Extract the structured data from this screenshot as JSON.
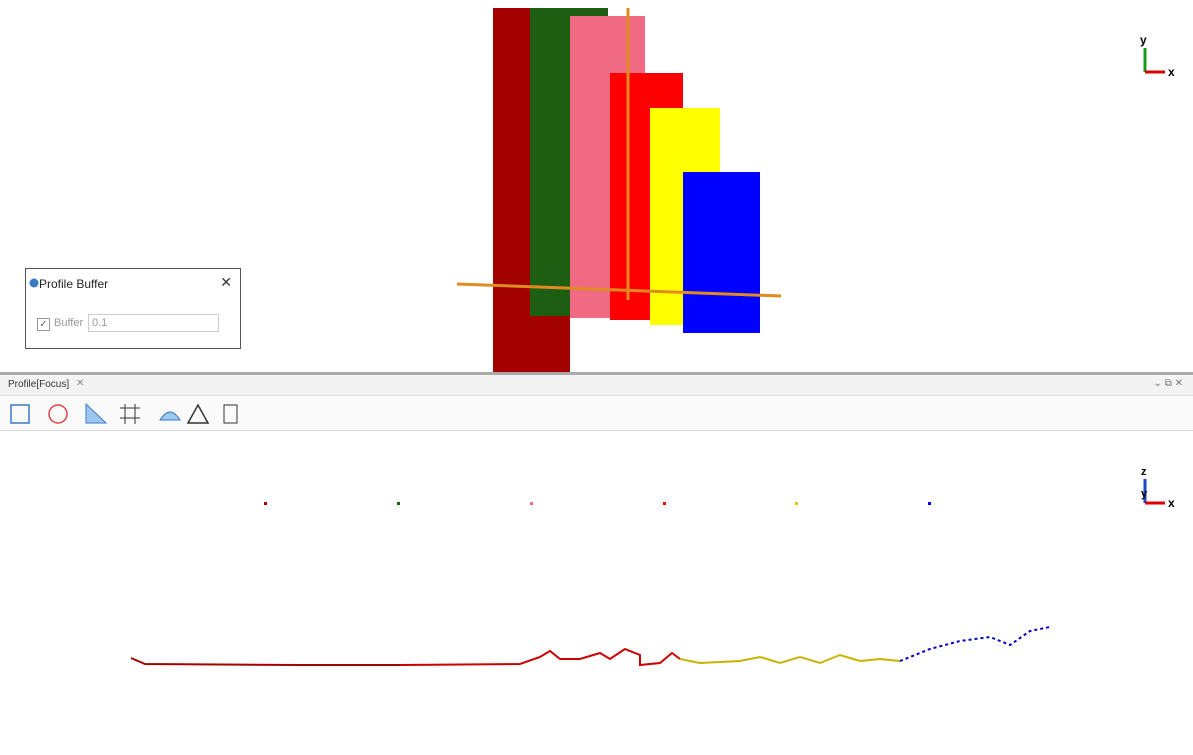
{
  "top_view": {
    "gizmo": {
      "up": "y",
      "right": "x"
    }
  },
  "dialog": {
    "title": "Profile Buffer",
    "buffer_label": "Buffer",
    "buffer_value": "0.1"
  },
  "profile_panel": {
    "tab": "Profile[Focus]",
    "gizmo": {
      "up": "z",
      "mid": "y",
      "right": "x"
    }
  }
}
